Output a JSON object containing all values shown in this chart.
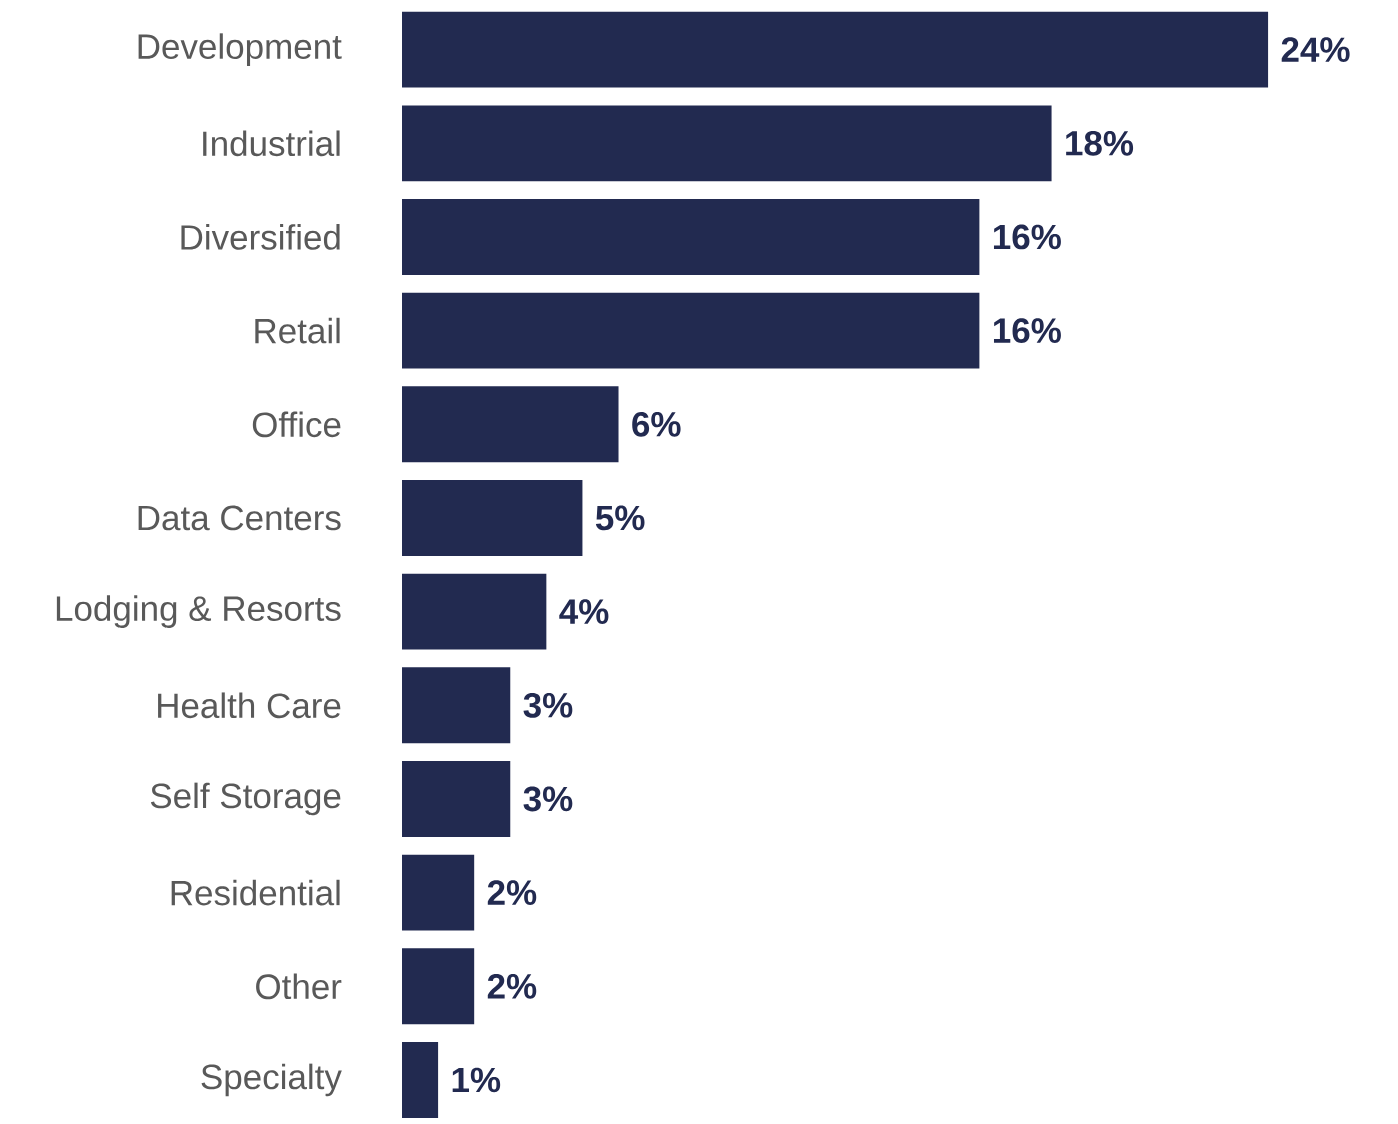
{
  "chart_data": {
    "type": "bar",
    "orientation": "horizontal",
    "color": "#222a50",
    "categories": [
      "Development",
      "Industrial",
      "Diversified",
      "Retail",
      "Office",
      "Data Centers",
      "Lodging & Resorts",
      "Health Care",
      "Self Storage",
      "Residential",
      "Other",
      "Specialty"
    ],
    "values": [
      24,
      18,
      16,
      16,
      6,
      5,
      4,
      3,
      3,
      2,
      2,
      1
    ],
    "value_labels": [
      "24%",
      "18%",
      "16%",
      "16%",
      "6%",
      "5%",
      "4%",
      "3%",
      "3%",
      "2%",
      "2%",
      "1%"
    ]
  }
}
